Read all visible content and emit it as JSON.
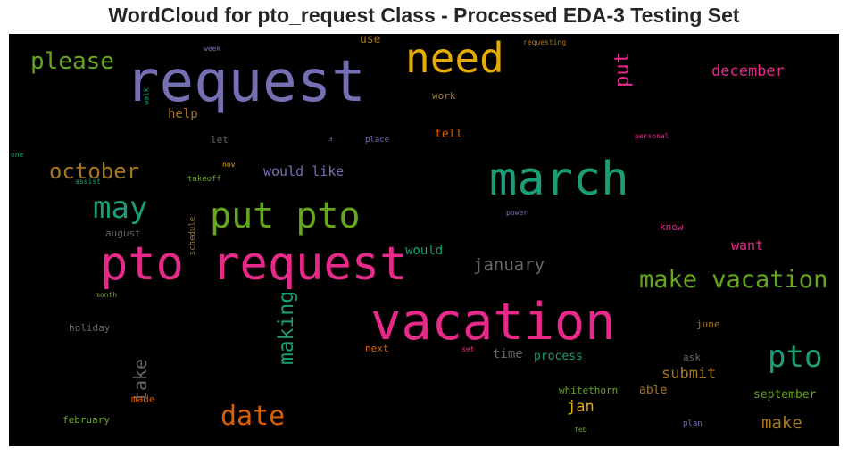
{
  "chart_data": {
    "type": "wordcloud",
    "title": "WordCloud for pto_request Class - Processed EDA-3 Testing Set",
    "background": "#000000",
    "palette": "Dark2",
    "words": [
      {
        "text": "request",
        "size": 64,
        "color": "#7570b3"
      },
      {
        "text": "pto request",
        "size": 52,
        "color": "#e7298a"
      },
      {
        "text": "vacation",
        "size": 57,
        "color": "#e7298a"
      },
      {
        "text": "march",
        "size": 52,
        "color": "#1b9e77"
      },
      {
        "text": "need",
        "size": 46,
        "color": "#e6ab02"
      },
      {
        "text": "put pto",
        "size": 40,
        "color": "#66a61e"
      },
      {
        "text": "pto",
        "size": 34,
        "color": "#1b9e77"
      },
      {
        "text": "may",
        "size": 34,
        "color": "#1b9e77"
      },
      {
        "text": "date",
        "size": 30,
        "color": "#d95f02"
      },
      {
        "text": "make vacation",
        "size": 27,
        "color": "#66a61e"
      },
      {
        "text": "please",
        "size": 26,
        "color": "#66a61e"
      },
      {
        "text": "october",
        "size": 24,
        "color": "#a6761d"
      },
      {
        "text": "making",
        "size": 23,
        "color": "#1b9e77"
      },
      {
        "text": "put",
        "size": 22,
        "color": "#e7298a"
      },
      {
        "text": "take",
        "size": 20,
        "color": "#666666"
      },
      {
        "text": "january",
        "size": 19,
        "color": "#666666"
      },
      {
        "text": "make",
        "size": 19,
        "color": "#a6761d"
      },
      {
        "text": "jan",
        "size": 17,
        "color": "#e6ab02"
      },
      {
        "text": "december",
        "size": 17,
        "color": "#e7298a"
      },
      {
        "text": "submit",
        "size": 17,
        "color": "#a6761d"
      },
      {
        "text": "want",
        "size": 15,
        "color": "#e7298a"
      },
      {
        "text": "would like",
        "size": 15,
        "color": "#7570b3"
      },
      {
        "text": "would",
        "size": 14,
        "color": "#1b9e77"
      },
      {
        "text": "help",
        "size": 14,
        "color": "#a6761d"
      },
      {
        "text": "time",
        "size": 14,
        "color": "#666666"
      },
      {
        "text": "tell",
        "size": 13,
        "color": "#d95f02"
      },
      {
        "text": "use",
        "size": 13,
        "color": "#a6761d"
      },
      {
        "text": "able",
        "size": 13,
        "color": "#a6761d"
      },
      {
        "text": "process",
        "size": 13,
        "color": "#1b9e77"
      },
      {
        "text": "september",
        "size": 13,
        "color": "#66a61e"
      },
      {
        "text": "whitethorn",
        "size": 11,
        "color": "#66a61e"
      },
      {
        "text": "work",
        "size": 11,
        "color": "#a6761d"
      },
      {
        "text": "let",
        "size": 11,
        "color": "#666666"
      },
      {
        "text": "holiday",
        "size": 11,
        "color": "#666666"
      },
      {
        "text": "next",
        "size": 11,
        "color": "#d95f02"
      },
      {
        "text": "june",
        "size": 11,
        "color": "#a6761d"
      },
      {
        "text": "august",
        "size": 11,
        "color": "#666666"
      },
      {
        "text": "ask",
        "size": 11,
        "color": "#666666"
      },
      {
        "text": "february",
        "size": 11,
        "color": "#66a61e"
      },
      {
        "text": "know",
        "size": 11,
        "color": "#e7298a"
      },
      {
        "text": "made",
        "size": 11,
        "color": "#d95f02"
      },
      {
        "text": "schedule",
        "size": 9,
        "color": "#a6761d"
      },
      {
        "text": "takeoff",
        "size": 9,
        "color": "#66a61e"
      },
      {
        "text": "place",
        "size": 9,
        "color": "#7570b3"
      },
      {
        "text": "plan",
        "size": 9,
        "color": "#7570b3"
      },
      {
        "text": "personal",
        "size": 8,
        "color": "#e7298a"
      },
      {
        "text": "requesting",
        "size": 8,
        "color": "#a6761d"
      },
      {
        "text": "week",
        "size": 8,
        "color": "#7570b3"
      },
      {
        "text": "power",
        "size": 8,
        "color": "#7570b3"
      },
      {
        "text": "nov",
        "size": 8,
        "color": "#e6ab02"
      },
      {
        "text": "assist",
        "size": 8,
        "color": "#1b9e77"
      },
      {
        "text": "month",
        "size": 8,
        "color": "#66a61e"
      },
      {
        "text": "one",
        "size": 8,
        "color": "#1b9e77"
      },
      {
        "text": "walk",
        "size": 8,
        "color": "#1b9e77"
      },
      {
        "text": "set",
        "size": 8,
        "color": "#e7298a"
      },
      {
        "text": "feb",
        "size": 8,
        "color": "#66a61e"
      },
      {
        "text": "з",
        "size": 8,
        "color": "#7570b3"
      }
    ]
  }
}
